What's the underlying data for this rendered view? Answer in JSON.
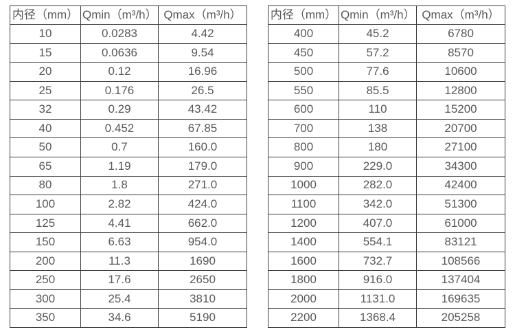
{
  "page": {
    "background": "#ffffff",
    "text_color": "#595959",
    "border_color": "#3a3a3a"
  },
  "tables": [
    {
      "id": "flow-table-small-diameters",
      "headers": [
        "内径（mm）",
        "Qmin（m³/h）",
        "Qmax（m³/h）"
      ],
      "rows": [
        [
          "10",
          "0.0283",
          "4.42"
        ],
        [
          "15",
          "0.0636",
          "9.54"
        ],
        [
          "20",
          "0.12",
          "16.96"
        ],
        [
          "25",
          "0.176",
          "26.5"
        ],
        [
          "32",
          "0.29",
          "43.42"
        ],
        [
          "40",
          "0.452",
          "67.85"
        ],
        [
          "50",
          "0.7",
          "160.0"
        ],
        [
          "65",
          "1.19",
          "179.0"
        ],
        [
          "80",
          "1.8",
          "271.0"
        ],
        [
          "100",
          "2.82",
          "424.0"
        ],
        [
          "125",
          "4.41",
          "662.0"
        ],
        [
          "150",
          "6.63",
          "954.0"
        ],
        [
          "200",
          "11.3",
          "1690"
        ],
        [
          "250",
          "17.6",
          "2650"
        ],
        [
          "300",
          "25.4",
          "3810"
        ],
        [
          "350",
          "34.6",
          "5190"
        ]
      ]
    },
    {
      "id": "flow-table-large-diameters",
      "headers": [
        "内径（mm）",
        "Qmin（m³/h）",
        "Qmax（m³/h）"
      ],
      "rows": [
        [
          "400",
          "45.2",
          "6780"
        ],
        [
          "450",
          "57.2",
          "8570"
        ],
        [
          "500",
          "77.6",
          "10600"
        ],
        [
          "550",
          "85.5",
          "12800"
        ],
        [
          "600",
          "110",
          "15200"
        ],
        [
          "700",
          "138",
          "20700"
        ],
        [
          "800",
          "180",
          "27100"
        ],
        [
          "900",
          "229.0",
          "34300"
        ],
        [
          "1000",
          "282.0",
          "42400"
        ],
        [
          "1100",
          "342.0",
          "51300"
        ],
        [
          "1200",
          "407.0",
          "61000"
        ],
        [
          "1400",
          "554.1",
          "83121"
        ],
        [
          "1600",
          "732.7",
          "108566"
        ],
        [
          "1800",
          "916.0",
          "137404"
        ],
        [
          "2000",
          "1131.0",
          "169635"
        ],
        [
          "2200",
          "1368.4",
          "205258"
        ]
      ]
    }
  ]
}
